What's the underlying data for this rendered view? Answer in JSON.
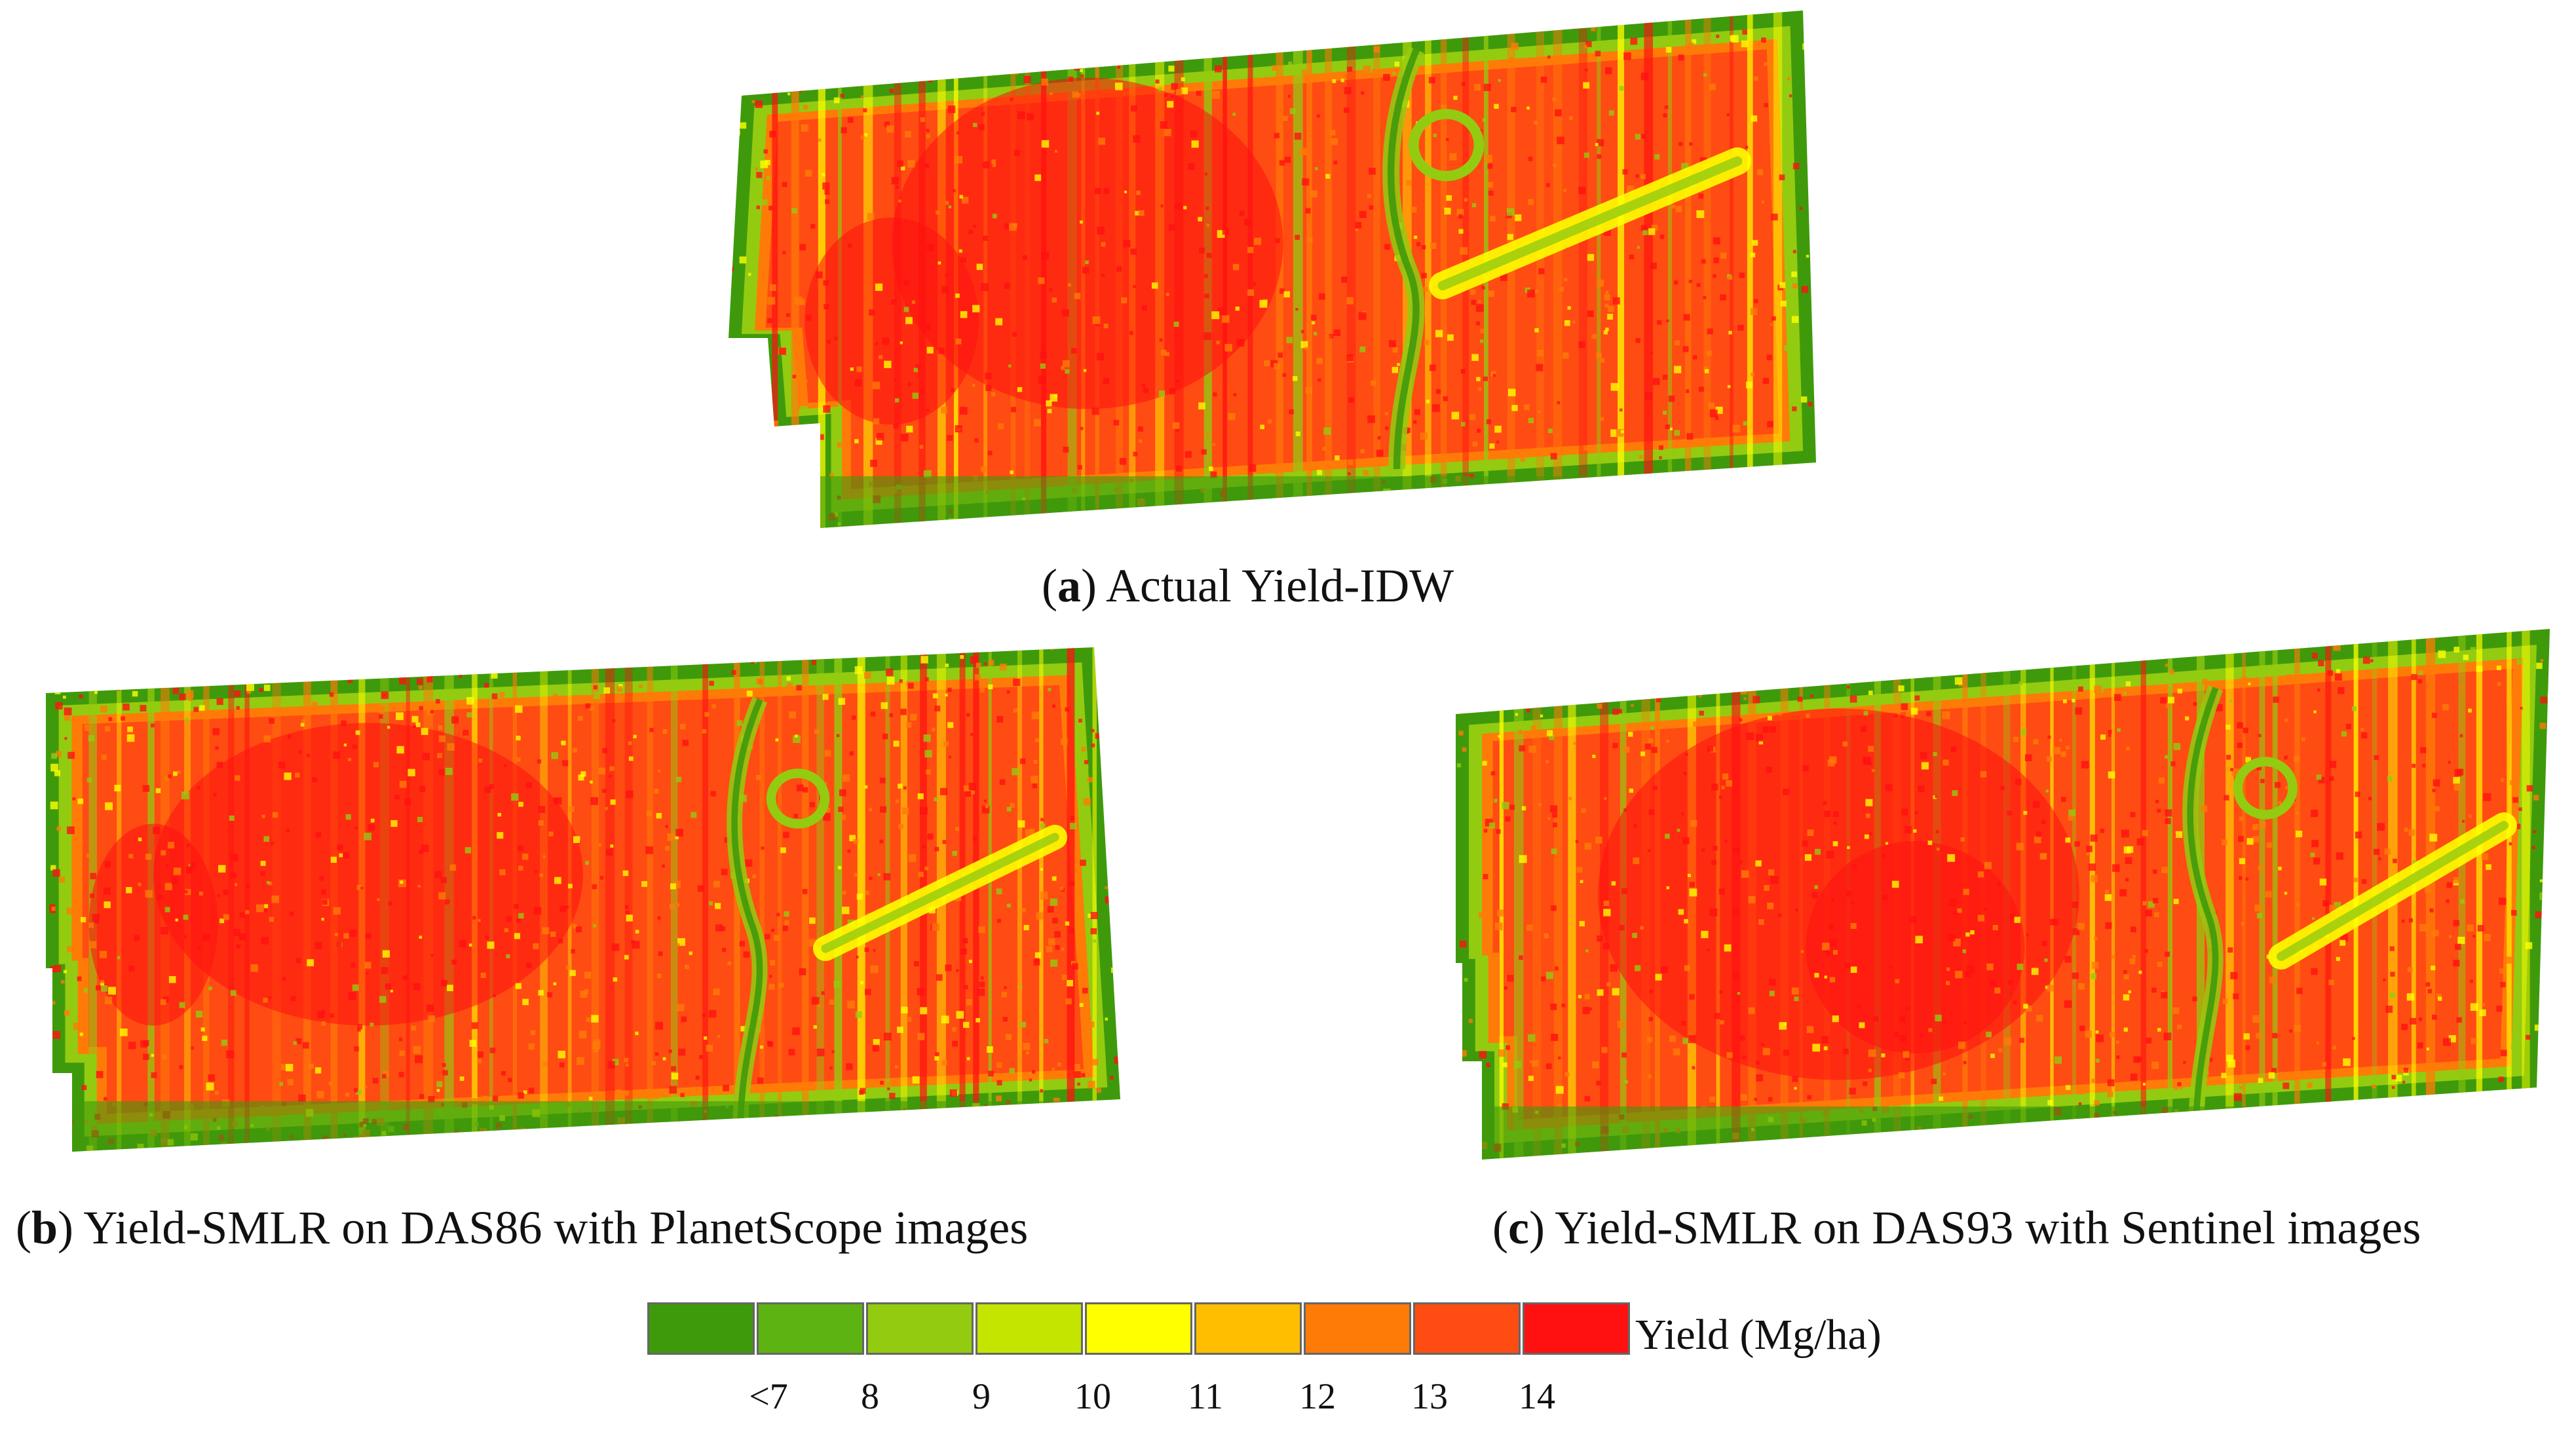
{
  "figure": {
    "panels": [
      {
        "label": "a",
        "caption": "Actual Yield-IDW"
      },
      {
        "label": "b",
        "caption": "Yield-SMLR on DAS86 with PlanetScope images"
      },
      {
        "label": "c",
        "caption": "Yield-SMLR on DAS93 with Sentinel images"
      }
    ],
    "legend": {
      "title": "Yield (Mg/ha)",
      "classes": [
        {
          "color": "#3f9a0b"
        },
        {
          "color": "#5cb312"
        },
        {
          "color": "#93cb10"
        },
        {
          "color": "#c4e500"
        },
        {
          "color": "#ffff00"
        },
        {
          "color": "#ffbf00"
        },
        {
          "color": "#ff7b08"
        },
        {
          "color": "#ff4c12"
        },
        {
          "color": "#ff1111"
        }
      ],
      "tick_labels": [
        "<7",
        "8",
        "9",
        "10",
        "11",
        "12",
        "13",
        "14"
      ]
    },
    "map_palette": {
      "border_green": "#3f9a0b",
      "light_green": "#93cb10",
      "yellow": "#ffff00",
      "orange": "#ff7b08",
      "red_orange": "#ff4c12",
      "red": "#ff1111"
    }
  }
}
